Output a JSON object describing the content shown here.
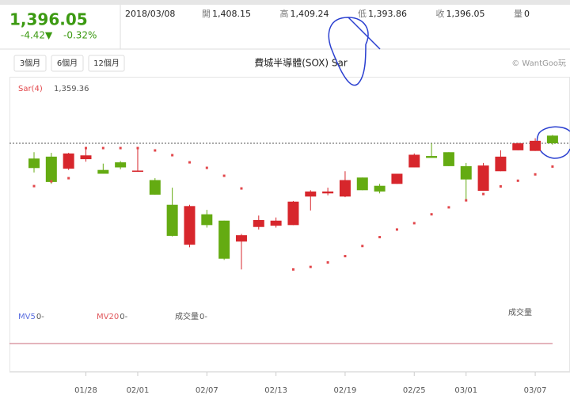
{
  "header": {
    "price": "1,396.05",
    "change": "-4.42▼",
    "change_pct": "-0.32%",
    "date": "2018/03/08",
    "quotes": [
      {
        "label": "開",
        "value": "1,408.15"
      },
      {
        "label": "高",
        "value": "1,409.24"
      },
      {
        "label": "低",
        "value": "1,393.86"
      },
      {
        "label": "收",
        "value": "1,396.05"
      },
      {
        "label": "量",
        "value": "0"
      }
    ]
  },
  "toolbar": {
    "ranges": [
      "3個月",
      "6個月",
      "12個月"
    ],
    "copyright": "© WantGoo玩"
  },
  "chart_data": {
    "type": "candlestick",
    "title": "費城半導體(SOX) Sar",
    "categories": [
      null,
      null,
      null,
      "01/28",
      null,
      null,
      "02/01",
      null,
      null,
      null,
      "02/07",
      null,
      null,
      null,
      "02/13",
      null,
      null,
      null,
      "02/19",
      null,
      null,
      null,
      "02/25",
      null,
      null,
      "03/01",
      null,
      null,
      null,
      "03/07",
      null
    ],
    "open": [
      1372,
      1375,
      1356,
      1371,
      1354,
      1366,
      1351,
      1338,
      1299,
      1236,
      1284,
      1274,
      1241,
      1264,
      1266,
      1267,
      1312,
      1317,
      1312,
      1342,
      1329,
      1332,
      1358,
      1376,
      1382,
      1360,
      1321,
      1352,
      1385,
      1384,
      1408.15
    ],
    "high": [
      1382,
      1381,
      1381,
      1390,
      1364,
      1368,
      1390,
      1341,
      1326,
      1299,
      1291,
      1274,
      1253,
      1282,
      1279,
      1305,
      1322,
      1326,
      1352,
      1342,
      1332,
      1348,
      1380,
      1396,
      1382,
      1365,
      1365,
      1385,
      1397,
      1404,
      1409.24
    ],
    "low": [
      1350,
      1332,
      1354,
      1367,
      1348,
      1355,
      1351,
      1315,
      1249,
      1232,
      1263,
      1212,
      1197,
      1260,
      1263,
      1267,
      1290,
      1314,
      1311,
      1322,
      1317,
      1332,
      1358,
      1373,
      1360,
      1305,
      1321,
      1352,
      1385,
      1384,
      1393.86
    ],
    "close": [
      1357,
      1335,
      1380,
      1377,
      1348,
      1358,
      1353,
      1315,
      1250,
      1297,
      1267,
      1214,
      1251,
      1275,
      1274,
      1304,
      1320,
      1320,
      1338,
      1322,
      1320,
      1348,
      1378,
      1373,
      1360,
      1339,
      1361,
      1375,
      1396,
      1400,
      1396.05
    ],
    "up_color": "#d7262c",
    "down_color": "#64ab12",
    "ylim": [
      1145,
      1501
    ],
    "last_price_line": true,
    "sar": {
      "name": "Sar(4)",
      "last_label": "1,359.36",
      "color": "#e2474b",
      "values": [
        1328.5,
        1336,
        1341,
        1388.5,
        1388.5,
        1388.5,
        1388.5,
        1384.8,
        1377.3,
        1366,
        1357.3,
        1344.8,
        1324.8,
        null,
        null,
        1197,
        1201,
        1208,
        1218,
        1234,
        1248,
        1260,
        1270,
        1284,
        1295,
        1306,
        1316,
        1328,
        1337,
        1347,
        1359.36
      ]
    },
    "indicators": [
      {
        "name": "MV5",
        "value": "0-",
        "color": "#5a6ee0"
      },
      {
        "name": "MV20",
        "value": "0-",
        "color": "#e0555a"
      },
      {
        "name": "成交量",
        "value": "0-",
        "color": "#555555"
      }
    ],
    "volume_label": "成交量"
  }
}
